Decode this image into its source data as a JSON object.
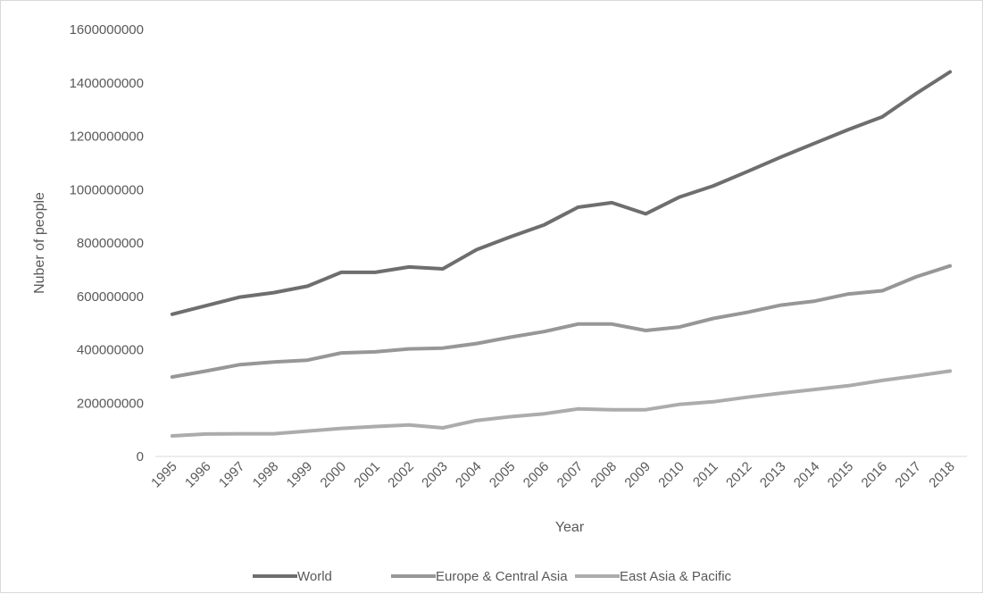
{
  "chart_data": {
    "type": "line",
    "title": "",
    "xlabel": "Year",
    "ylabel": "Nuber of people",
    "ylim": [
      0,
      1600000000
    ],
    "yticks": [
      0,
      200000000,
      400000000,
      600000000,
      800000000,
      1000000000,
      1200000000,
      1400000000,
      1600000000
    ],
    "grid": false,
    "legend_position": "bottom",
    "categories": [
      "1995",
      "1996",
      "1997",
      "1998",
      "1999",
      "2000",
      "2001",
      "2002",
      "2003",
      "2004",
      "2005",
      "2006",
      "2007",
      "2008",
      "2009",
      "2010",
      "2011",
      "2012",
      "2013",
      "2014",
      "2015",
      "2016",
      "2017",
      "2018"
    ],
    "series": [
      {
        "name": "World",
        "color": "#6e6e6e",
        "values": [
          533000000,
          565000000,
          597000000,
          614000000,
          638000000,
          690000000,
          690000000,
          710000000,
          703000000,
          775000000,
          823000000,
          868000000,
          934000000,
          951000000,
          909000000,
          972000000,
          1014000000,
          1067000000,
          1122000000,
          1174000000,
          1225000000,
          1273000000,
          1360000000,
          1441000000
        ]
      },
      {
        "name": "Europe & Central Asia",
        "color": "#979797",
        "values": [
          298000000,
          320000000,
          344000000,
          354000000,
          361000000,
          388000000,
          392000000,
          403000000,
          406000000,
          423000000,
          447000000,
          468000000,
          496000000,
          496000000,
          472000000,
          485000000,
          517000000,
          540000000,
          567000000,
          582000000,
          609000000,
          621000000,
          673000000,
          714000000
        ]
      },
      {
        "name": "East Asia & Pacific",
        "color": "#acacac",
        "values": [
          77000000,
          84000000,
          85000000,
          85000000,
          95000000,
          105000000,
          112000000,
          118000000,
          107000000,
          135000000,
          149000000,
          160000000,
          178000000,
          175000000,
          175000000,
          195000000,
          205000000,
          222000000,
          237000000,
          251000000,
          265000000,
          285000000,
          302000000,
          320000000
        ]
      }
    ]
  }
}
